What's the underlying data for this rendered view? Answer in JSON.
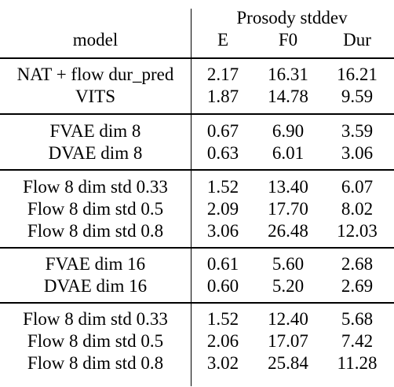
{
  "table": {
    "super_header": "Prosody stddev",
    "columns": {
      "model": "model",
      "e": "E",
      "f0": "F0",
      "dur": "Dur"
    },
    "groups": [
      {
        "rows": [
          {
            "model": "NAT + flow dur_pred",
            "e": "2.17",
            "f0": "16.31",
            "dur": "16.21"
          },
          {
            "model": "VITS",
            "e": "1.87",
            "f0": "14.78",
            "dur": "9.59"
          }
        ]
      },
      {
        "rows": [
          {
            "model": "FVAE dim 8",
            "e": "0.67",
            "f0": "6.90",
            "dur": "3.59"
          },
          {
            "model": "DVAE dim 8",
            "e": "0.63",
            "f0": "6.01",
            "dur": "3.06"
          }
        ]
      },
      {
        "rows": [
          {
            "model": "Flow 8 dim std 0.33",
            "e": "1.52",
            "f0": "13.40",
            "dur": "6.07"
          },
          {
            "model": "Flow 8 dim std 0.5",
            "e": "2.09",
            "f0": "17.70",
            "dur": "8.02"
          },
          {
            "model": "Flow 8 dim std 0.8",
            "e": "3.06",
            "f0": "26.48",
            "dur": "12.03"
          }
        ]
      },
      {
        "rows": [
          {
            "model": "FVAE dim 16",
            "e": "0.61",
            "f0": "5.60",
            "dur": "2.68"
          },
          {
            "model": "DVAE dim 16",
            "e": "0.60",
            "f0": "5.20",
            "dur": "2.69"
          }
        ]
      },
      {
        "rows": [
          {
            "model": "Flow 8 dim std 0.33",
            "e": "1.52",
            "f0": "12.40",
            "dur": "5.68"
          },
          {
            "model": "Flow 8 dim std 0.5",
            "e": "2.06",
            "f0": "17.07",
            "dur": "7.42"
          },
          {
            "model": "Flow 8 dim std 0.8",
            "e": "3.02",
            "f0": "25.84",
            "dur": "11.28"
          }
        ]
      }
    ]
  }
}
